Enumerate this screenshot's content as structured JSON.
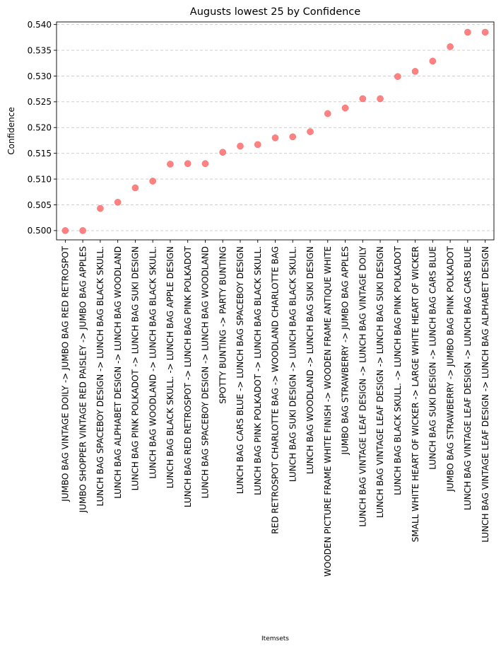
{
  "chart_data": {
    "type": "scatter",
    "title": "Augusts lowest 25 by Confidence",
    "xlabel": "Itemsets",
    "ylabel": "Confidence",
    "ylim": [
      0.4982,
      0.5405
    ],
    "yticks": [
      "0.500",
      "0.505",
      "0.510",
      "0.515",
      "0.520",
      "0.525",
      "0.530",
      "0.535",
      "0.540"
    ],
    "grid": "y-dashed",
    "marker_color": "#ff6b6b",
    "series": [
      {
        "categories": [
          "JUMBO BAG VINTAGE DOILY -> JUMBO BAG RED RETROSPOT",
          "JUMBO SHOPPER VINTAGE RED PAISLEY -> JUMBO BAG APPLES",
          "LUNCH BAG SPACEBOY DESIGN -> LUNCH BAG  BLACK SKULL.",
          "LUNCH BAG ALPHABET DESIGN -> LUNCH BAG WOODLAND",
          "LUNCH BAG PINK POLKADOT -> LUNCH BAG SUKI DESIGN",
          "LUNCH BAG WOODLAND -> LUNCH BAG  BLACK SKULL.",
          "LUNCH BAG  BLACK SKULL. -> LUNCH BAG APPLE DESIGN",
          "LUNCH BAG RED RETROSPOT -> LUNCH BAG PINK POLKADOT",
          "LUNCH BAG SPACEBOY DESIGN -> LUNCH BAG WOODLAND",
          "SPOTTY BUNTING -> PARTY BUNTING",
          "LUNCH BAG CARS BLUE -> LUNCH BAG SPACEBOY DESIGN",
          "LUNCH BAG PINK POLKADOT -> LUNCH BAG  BLACK SKULL.",
          "RED RETROSPOT CHARLOTTE BAG -> WOODLAND CHARLOTTE BAG",
          "LUNCH BAG SUKI DESIGN -> LUNCH BAG  BLACK SKULL.",
          "LUNCH BAG WOODLAND -> LUNCH BAG SUKI DESIGN",
          "WOODEN PICTURE FRAME WHITE FINISH -> WOODEN FRAME ANTIQUE WHITE",
          "JUMBO BAG STRAWBERRY -> JUMBO BAG APPLES",
          "LUNCH BAG VINTAGE LEAF DESIGN -> LUNCH BAG VINTAGE DOILY",
          "LUNCH BAG VINTAGE LEAF DESIGN -> LUNCH BAG SUKI DESIGN",
          "LUNCH BAG  BLACK SKULL. -> LUNCH BAG PINK POLKADOT",
          "SMALL WHITE HEART OF WICKER -> LARGE WHITE HEART OF WICKER",
          "LUNCH BAG SUKI DESIGN -> LUNCH BAG CARS BLUE",
          "JUMBO BAG STRAWBERRY -> JUMBO BAG PINK POLKADOT",
          "LUNCH BAG VINTAGE LEAF DESIGN -> LUNCH BAG CARS BLUE",
          "LUNCH BAG VINTAGE LEAF DESIGN -> LUNCH BAG ALPHABET DESIGN"
        ],
        "values": [
          0.5,
          0.5,
          0.5043,
          0.5055,
          0.5083,
          0.5096,
          0.5129,
          0.513,
          0.513,
          0.5152,
          0.5164,
          0.5167,
          0.518,
          0.5182,
          0.5192,
          0.5227,
          0.5238,
          0.5256,
          0.5256,
          0.5299,
          0.5309,
          0.5329,
          0.5357,
          0.5385,
          0.5385
        ]
      }
    ]
  }
}
